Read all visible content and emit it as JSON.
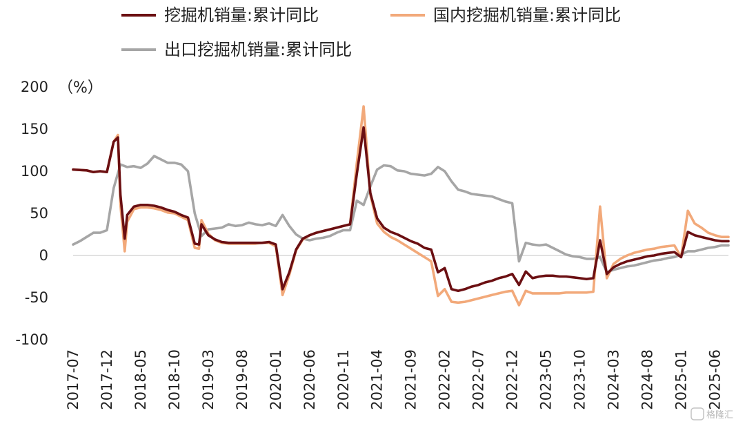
{
  "chart_data": {
    "type": "line",
    "unit_label": "（%）",
    "ylim": [
      -100,
      200
    ],
    "yticks": [
      200,
      150,
      100,
      50,
      0,
      -50,
      -100
    ],
    "xtick_labels": [
      "2017-07",
      "2017-12",
      "2018-05",
      "2018-10",
      "2019-03",
      "2019-08",
      "2020-01",
      "2020-06",
      "2020-11",
      "2021-04",
      "2021-09",
      "2022-02",
      "2022-07",
      "2022-12",
      "2023-05",
      "2023-10",
      "2024-03",
      "2024-08",
      "2025-01",
      "2025-06"
    ],
    "x_range": [
      "2017-07",
      "2025-08"
    ],
    "grid": false,
    "zero_line": true,
    "legend_position": "top",
    "series": [
      {
        "name": "挖掘机销量:累计同比",
        "color": "#6b0f12",
        "points": [
          [
            "2017-07",
            102
          ],
          [
            "2017-09",
            101
          ],
          [
            "2017-10",
            99
          ],
          [
            "2017-11",
            100
          ],
          [
            "2017-12",
            99
          ],
          [
            "2018-01",
            135
          ],
          [
            "2018-01-20",
            140
          ],
          [
            "2018-02",
            72
          ],
          [
            "2018-02-20",
            20
          ],
          [
            "2018-03",
            48
          ],
          [
            "2018-04",
            58
          ],
          [
            "2018-05",
            60
          ],
          [
            "2018-06",
            60
          ],
          [
            "2018-07",
            59
          ],
          [
            "2018-08",
            57
          ],
          [
            "2018-09",
            54
          ],
          [
            "2018-10",
            52
          ],
          [
            "2018-11",
            48
          ],
          [
            "2018-12",
            45
          ],
          [
            "2019-01",
            14
          ],
          [
            "2019-01-20",
            13
          ],
          [
            "2019-02",
            37
          ],
          [
            "2019-03",
            24
          ],
          [
            "2019-04",
            19
          ],
          [
            "2019-05",
            16
          ],
          [
            "2019-06",
            15
          ],
          [
            "2019-07",
            15
          ],
          [
            "2019-08",
            15
          ],
          [
            "2019-09",
            15
          ],
          [
            "2019-10",
            15
          ],
          [
            "2019-11",
            15
          ],
          [
            "2019-12",
            16
          ],
          [
            "2020-01",
            13
          ],
          [
            "2020-02",
            -40
          ],
          [
            "2020-03",
            -20
          ],
          [
            "2020-04",
            7
          ],
          [
            "2020-05",
            20
          ],
          [
            "2020-06",
            24
          ],
          [
            "2020-07",
            27
          ],
          [
            "2020-08",
            29
          ],
          [
            "2020-09",
            31
          ],
          [
            "2020-10",
            33
          ],
          [
            "2020-11",
            35
          ],
          [
            "2020-12",
            37
          ],
          [
            "2021-01",
            97
          ],
          [
            "2021-02",
            152
          ],
          [
            "2021-03",
            74
          ],
          [
            "2021-04",
            44
          ],
          [
            "2021-05",
            33
          ],
          [
            "2021-06",
            28
          ],
          [
            "2021-07",
            25
          ],
          [
            "2021-08",
            21
          ],
          [
            "2021-09",
            17
          ],
          [
            "2021-10",
            14
          ],
          [
            "2021-11",
            9
          ],
          [
            "2021-12",
            7
          ],
          [
            "2022-01",
            -20
          ],
          [
            "2022-02",
            -15
          ],
          [
            "2022-03",
            -40
          ],
          [
            "2022-04",
            -42
          ],
          [
            "2022-05",
            -40
          ],
          [
            "2022-06",
            -37
          ],
          [
            "2022-07",
            -35
          ],
          [
            "2022-08",
            -32
          ],
          [
            "2022-09",
            -30
          ],
          [
            "2022-10",
            -27
          ],
          [
            "2022-11",
            -25
          ],
          [
            "2022-12",
            -22
          ],
          [
            "2023-01",
            -35
          ],
          [
            "2023-02",
            -19
          ],
          [
            "2023-03",
            -27
          ],
          [
            "2023-04",
            -25
          ],
          [
            "2023-05",
            -24
          ],
          [
            "2023-06",
            -24
          ],
          [
            "2023-07",
            -25
          ],
          [
            "2023-08",
            -25
          ],
          [
            "2023-09",
            -26
          ],
          [
            "2023-10",
            -27
          ],
          [
            "2023-11",
            -28
          ],
          [
            "2023-12",
            -27
          ],
          [
            "2024-01",
            18
          ],
          [
            "2024-02",
            -22
          ],
          [
            "2024-03",
            -14
          ],
          [
            "2024-04",
            -10
          ],
          [
            "2024-05",
            -7
          ],
          [
            "2024-06",
            -5
          ],
          [
            "2024-07",
            -3
          ],
          [
            "2024-08",
            -1
          ],
          [
            "2024-09",
            0
          ],
          [
            "2024-10",
            2
          ],
          [
            "2024-11",
            3
          ],
          [
            "2024-12",
            4
          ],
          [
            "2025-01",
            -2
          ],
          [
            "2025-02",
            28
          ],
          [
            "2025-03",
            24
          ],
          [
            "2025-04",
            22
          ],
          [
            "2025-05",
            20
          ],
          [
            "2025-06",
            18
          ],
          [
            "2025-07",
            17
          ],
          [
            "2025-08",
            17
          ]
        ]
      },
      {
        "name": "国内挖掘机销量:累计同比",
        "color": "#f2a97a",
        "points": [
          [
            "2017-07",
            102
          ],
          [
            "2017-09",
            101
          ],
          [
            "2017-10",
            99
          ],
          [
            "2017-11",
            100
          ],
          [
            "2017-12",
            99
          ],
          [
            "2018-01",
            135
          ],
          [
            "2018-01-20",
            143
          ],
          [
            "2018-02",
            60
          ],
          [
            "2018-02-20",
            5
          ],
          [
            "2018-03",
            40
          ],
          [
            "2018-04",
            55
          ],
          [
            "2018-05",
            57
          ],
          [
            "2018-06",
            57
          ],
          [
            "2018-07",
            56
          ],
          [
            "2018-08",
            54
          ],
          [
            "2018-09",
            51
          ],
          [
            "2018-10",
            50
          ],
          [
            "2018-11",
            46
          ],
          [
            "2018-12",
            42
          ],
          [
            "2019-01",
            9
          ],
          [
            "2019-01-20",
            8
          ],
          [
            "2019-02",
            42
          ],
          [
            "2019-03",
            26
          ],
          [
            "2019-04",
            18
          ],
          [
            "2019-05",
            15
          ],
          [
            "2019-06",
            14
          ],
          [
            "2019-07",
            14
          ],
          [
            "2019-08",
            14
          ],
          [
            "2019-09",
            14
          ],
          [
            "2019-10",
            14
          ],
          [
            "2019-11",
            15
          ],
          [
            "2019-12",
            15
          ],
          [
            "2020-01",
            11
          ],
          [
            "2020-02",
            -47
          ],
          [
            "2020-03",
            -23
          ],
          [
            "2020-04",
            6
          ],
          [
            "2020-05",
            19
          ],
          [
            "2020-06",
            24
          ],
          [
            "2020-07",
            27
          ],
          [
            "2020-08",
            29
          ],
          [
            "2020-09",
            31
          ],
          [
            "2020-10",
            33
          ],
          [
            "2020-11",
            35
          ],
          [
            "2020-12",
            37
          ],
          [
            "2021-01",
            110
          ],
          [
            "2021-02",
            177
          ],
          [
            "2021-03",
            72
          ],
          [
            "2021-04",
            38
          ],
          [
            "2021-05",
            28
          ],
          [
            "2021-06",
            22
          ],
          [
            "2021-07",
            18
          ],
          [
            "2021-08",
            13
          ],
          [
            "2021-09",
            8
          ],
          [
            "2021-10",
            3
          ],
          [
            "2021-11",
            -2
          ],
          [
            "2021-12",
            -7
          ],
          [
            "2022-01",
            -48
          ],
          [
            "2022-02",
            -40
          ],
          [
            "2022-03",
            -55
          ],
          [
            "2022-04",
            -56
          ],
          [
            "2022-05",
            -55
          ],
          [
            "2022-06",
            -53
          ],
          [
            "2022-07",
            -51
          ],
          [
            "2022-08",
            -49
          ],
          [
            "2022-09",
            -47
          ],
          [
            "2022-10",
            -45
          ],
          [
            "2022-11",
            -43
          ],
          [
            "2022-12",
            -42
          ],
          [
            "2023-01",
            -59
          ],
          [
            "2023-02",
            -42
          ],
          [
            "2023-03",
            -45
          ],
          [
            "2023-04",
            -45
          ],
          [
            "2023-05",
            -45
          ],
          [
            "2023-06",
            -45
          ],
          [
            "2023-07",
            -45
          ],
          [
            "2023-08",
            -44
          ],
          [
            "2023-09",
            -44
          ],
          [
            "2023-10",
            -44
          ],
          [
            "2023-11",
            -44
          ],
          [
            "2023-12",
            -43
          ],
          [
            "2024-01",
            58
          ],
          [
            "2024-02",
            -27
          ],
          [
            "2024-03",
            -10
          ],
          [
            "2024-04",
            -4
          ],
          [
            "2024-05",
            0
          ],
          [
            "2024-06",
            3
          ],
          [
            "2024-07",
            5
          ],
          [
            "2024-08",
            7
          ],
          [
            "2024-09",
            8
          ],
          [
            "2024-10",
            10
          ],
          [
            "2024-11",
            11
          ],
          [
            "2024-12",
            12
          ],
          [
            "2025-01",
            -2
          ],
          [
            "2025-02",
            53
          ],
          [
            "2025-03",
            38
          ],
          [
            "2025-04",
            33
          ],
          [
            "2025-05",
            27
          ],
          [
            "2025-06",
            24
          ],
          [
            "2025-07",
            22
          ],
          [
            "2025-08",
            22
          ]
        ]
      },
      {
        "name": "出口挖掘机销量:累计同比",
        "color": "#a6a6a6",
        "points": [
          [
            "2017-07",
            13
          ],
          [
            "2017-08",
            17
          ],
          [
            "2017-09",
            22
          ],
          [
            "2017-10",
            27
          ],
          [
            "2017-11",
            27
          ],
          [
            "2017-12",
            30
          ],
          [
            "2018-01",
            80
          ],
          [
            "2018-02",
            108
          ],
          [
            "2018-03",
            105
          ],
          [
            "2018-04",
            106
          ],
          [
            "2018-05",
            104
          ],
          [
            "2018-06",
            109
          ],
          [
            "2018-07",
            118
          ],
          [
            "2018-08",
            114
          ],
          [
            "2018-09",
            110
          ],
          [
            "2018-10",
            110
          ],
          [
            "2018-11",
            108
          ],
          [
            "2018-12",
            100
          ],
          [
            "2019-01",
            50
          ],
          [
            "2019-02",
            23
          ],
          [
            "2019-03",
            31
          ],
          [
            "2019-04",
            32
          ],
          [
            "2019-05",
            33
          ],
          [
            "2019-06",
            37
          ],
          [
            "2019-07",
            35
          ],
          [
            "2019-08",
            36
          ],
          [
            "2019-09",
            39
          ],
          [
            "2019-10",
            37
          ],
          [
            "2019-11",
            36
          ],
          [
            "2019-12",
            38
          ],
          [
            "2020-01",
            35
          ],
          [
            "2020-02",
            48
          ],
          [
            "2020-03",
            35
          ],
          [
            "2020-04",
            25
          ],
          [
            "2020-05",
            20
          ],
          [
            "2020-06",
            18
          ],
          [
            "2020-07",
            20
          ],
          [
            "2020-08",
            21
          ],
          [
            "2020-09",
            23
          ],
          [
            "2020-10",
            27
          ],
          [
            "2020-11",
            30
          ],
          [
            "2020-12",
            30
          ],
          [
            "2021-01",
            65
          ],
          [
            "2021-02",
            60
          ],
          [
            "2021-03",
            82
          ],
          [
            "2021-04",
            102
          ],
          [
            "2021-05",
            107
          ],
          [
            "2021-06",
            106
          ],
          [
            "2021-07",
            101
          ],
          [
            "2021-08",
            100
          ],
          [
            "2021-09",
            97
          ],
          [
            "2021-10",
            96
          ],
          [
            "2021-11",
            95
          ],
          [
            "2021-12",
            97
          ],
          [
            "2022-01",
            105
          ],
          [
            "2022-02",
            100
          ],
          [
            "2022-03",
            88
          ],
          [
            "2022-04",
            78
          ],
          [
            "2022-05",
            76
          ],
          [
            "2022-06",
            73
          ],
          [
            "2022-07",
            72
          ],
          [
            "2022-08",
            71
          ],
          [
            "2022-09",
            70
          ],
          [
            "2022-10",
            67
          ],
          [
            "2022-11",
            64
          ],
          [
            "2022-12",
            62
          ],
          [
            "2023-01",
            -7
          ],
          [
            "2023-02",
            15
          ],
          [
            "2023-03",
            13
          ],
          [
            "2023-04",
            12
          ],
          [
            "2023-05",
            13
          ],
          [
            "2023-06",
            9
          ],
          [
            "2023-07",
            5
          ],
          [
            "2023-08",
            1
          ],
          [
            "2023-09",
            -1
          ],
          [
            "2023-10",
            -2
          ],
          [
            "2023-11",
            -4
          ],
          [
            "2023-12",
            -4
          ],
          [
            "2024-01",
            -2
          ],
          [
            "2024-02",
            -20
          ],
          [
            "2024-03",
            -17
          ],
          [
            "2024-04",
            -15
          ],
          [
            "2024-05",
            -13
          ],
          [
            "2024-06",
            -12
          ],
          [
            "2024-07",
            -10
          ],
          [
            "2024-08",
            -8
          ],
          [
            "2024-09",
            -6
          ],
          [
            "2024-10",
            -5
          ],
          [
            "2024-11",
            -3
          ],
          [
            "2024-12",
            -2
          ],
          [
            "2025-01",
            1
          ],
          [
            "2025-02",
            5
          ],
          [
            "2025-03",
            5
          ],
          [
            "2025-04",
            7
          ],
          [
            "2025-05",
            9
          ],
          [
            "2025-06",
            10
          ],
          [
            "2025-07",
            12
          ],
          [
            "2025-08",
            12
          ]
        ]
      }
    ]
  },
  "watermark": "格隆汇"
}
